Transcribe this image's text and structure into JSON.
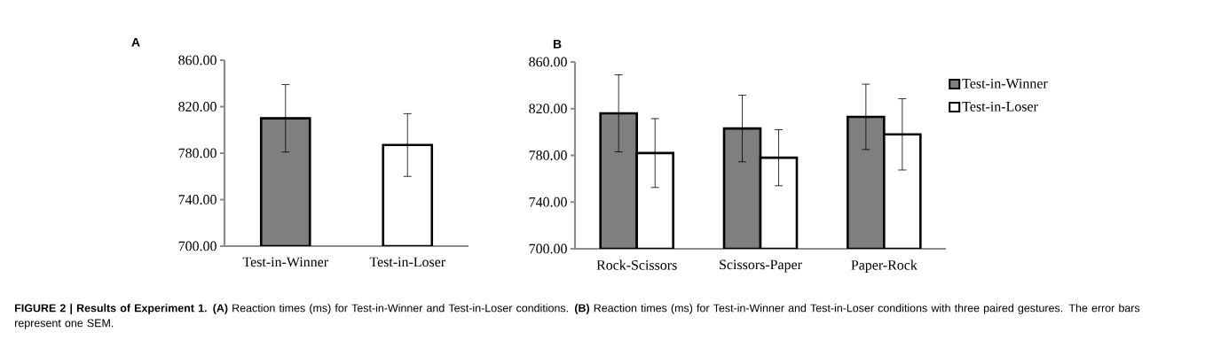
{
  "chart_data": [
    {
      "type": "bar",
      "title": "A",
      "categories": [
        "Test-in-Winner",
        "Test-in-Loser"
      ],
      "values": [
        810,
        787
      ],
      "colors": [
        "#7f7f7f",
        "#ffffff"
      ],
      "errors": [
        29,
        27
      ],
      "ylim": [
        700,
        860
      ],
      "yticks": [
        {
          "value": 700,
          "label": "700.00"
        },
        {
          "value": 740,
          "label": "740.00"
        },
        {
          "value": 780,
          "label": "780.00"
        },
        {
          "value": 820,
          "label": "820.00"
        },
        {
          "value": 860,
          "label": "860.00"
        }
      ],
      "annotations": [
        "**FIGURE 2 | Results of Experiment 1. (A)** Reaction times (ms) for Test-in-Winner and Test-in-Loser conditions. **(B)** Reaction times (ms) for Test-in-Winner and Test-in-Loser conditions with three paired gestures. The error bars represent one SEM."
      ]
    },
    {
      "type": "bar",
      "title": "B",
      "categories": [
        "Rock-Scissors",
        "Scissors-Paper",
        "Paper-Rock"
      ],
      "series": [
        {
          "name": "Test-in-Winner",
          "color": "#7f7f7f",
          "values": [
            816,
            803,
            813
          ],
          "errors": [
            33,
            28.5,
            28
          ]
        },
        {
          "name": "Test-in-Loser",
          "color": "#ffffff",
          "values": [
            782,
            778,
            798
          ],
          "errors": [
            29.5,
            24,
            30.5
          ]
        }
      ],
      "ylim": [
        700,
        860
      ],
      "yticks": [
        {
          "value": 700,
          "label": "700.00"
        },
        {
          "value": 740,
          "label": "740.00"
        },
        {
          "value": 780,
          "label": "780.00"
        },
        {
          "value": 820,
          "label": "820.00"
        },
        {
          "value": 860,
          "label": "860.00"
        }
      ],
      "legend": "right"
    }
  ]
}
